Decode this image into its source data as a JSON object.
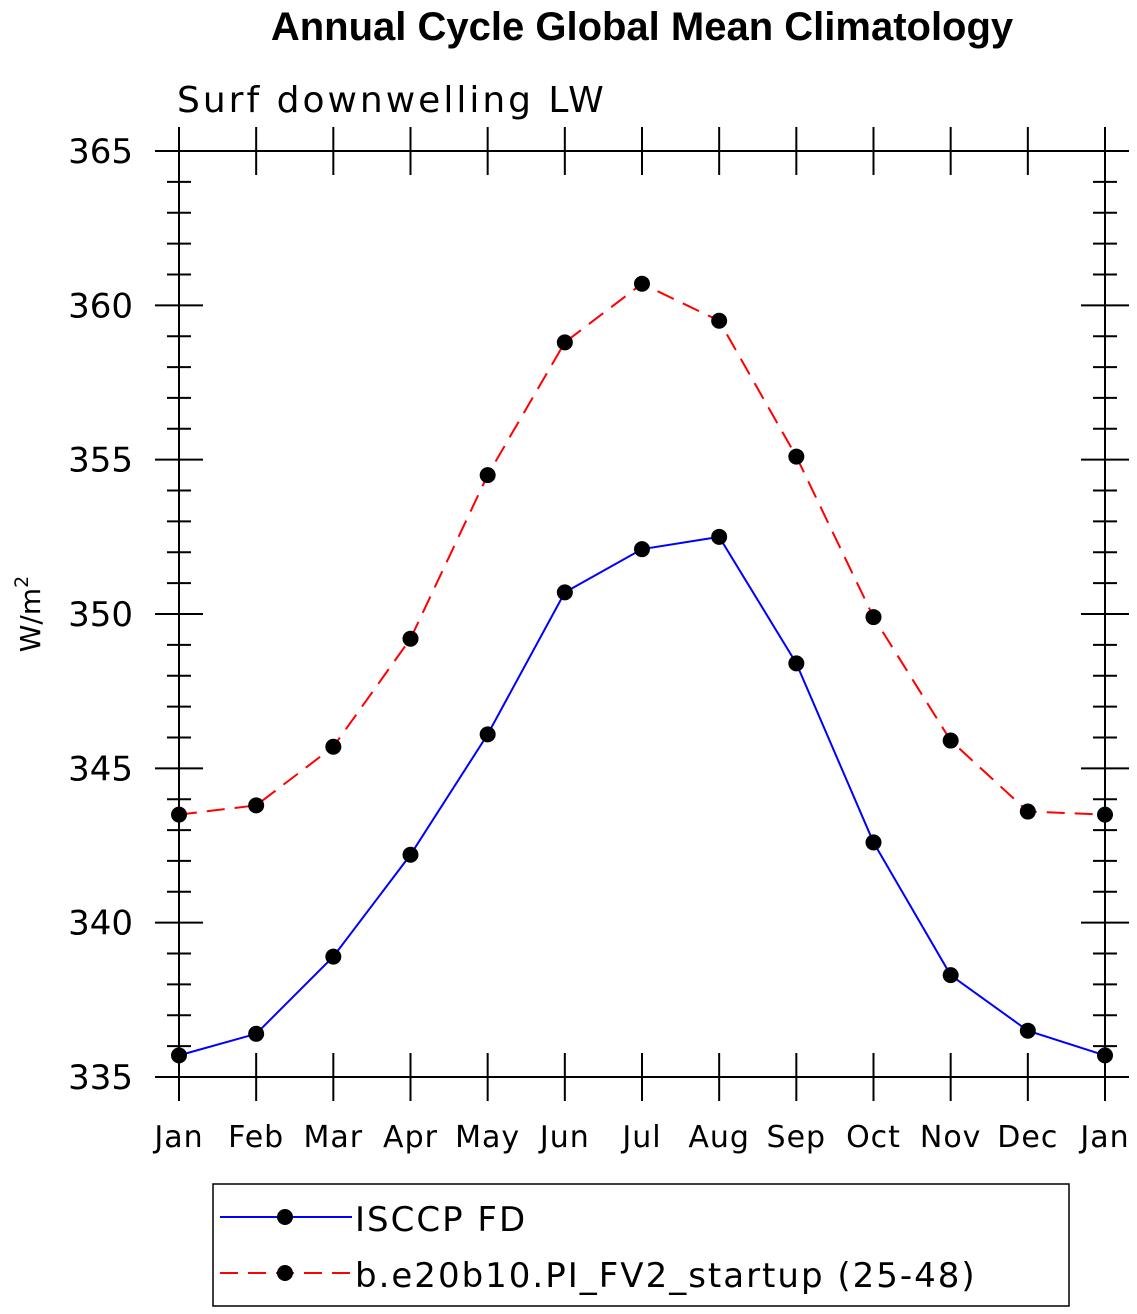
{
  "chart_data": {
    "type": "line",
    "title": "Annual Cycle Global Mean Climatology",
    "subtitle": "Surf downwelling LW",
    "ylabel": "W/m",
    "ylabel_superscript": "2",
    "ylim": [
      335,
      365
    ],
    "yticks": [
      335,
      340,
      345,
      350,
      355,
      360,
      365
    ],
    "x": [
      "Jan",
      "Feb",
      "Mar",
      "Apr",
      "May",
      "Jun",
      "Jul",
      "Aug",
      "Sep",
      "Oct",
      "Nov",
      "Dec",
      "Jan"
    ],
    "grid": false,
    "legend_position": "bottom",
    "series": [
      {
        "name": "ISCCP FD",
        "color": "#0000ff",
        "dash": "solid",
        "marker": "filled-circle",
        "values": [
          335.7,
          336.4,
          338.9,
          342.2,
          346.1,
          350.7,
          352.1,
          352.5,
          348.4,
          342.6,
          338.3,
          336.5,
          335.7
        ]
      },
      {
        "name": "b.e20b10.PI_FV2_startup (25-48)",
        "color": "#ff0000",
        "dash": "dashed",
        "marker": "filled-circle",
        "values": [
          343.5,
          343.8,
          345.7,
          349.2,
          354.5,
          358.8,
          360.7,
          359.5,
          355.1,
          349.9,
          345.9,
          343.6,
          343.5
        ]
      }
    ]
  }
}
